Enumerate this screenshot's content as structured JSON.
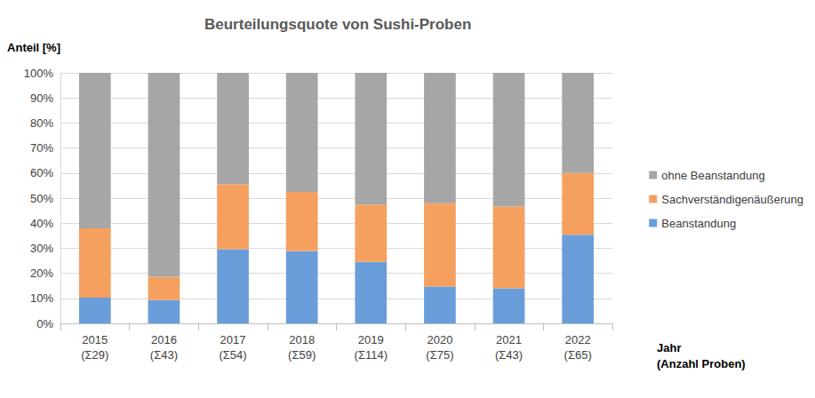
{
  "chart_data": {
    "type": "bar",
    "title": "Beurteilungsquote von Sushi-Proben",
    "y_label": "Anteil [%]",
    "x_label": "Jahr\n(Anzahl Proben)",
    "categories": [
      "2015\n(Σ29)",
      "2016\n(Σ43)",
      "2017\n(Σ54)",
      "2018\n(Σ59)",
      "2019\n(Σ114)",
      "2020\n(Σ75)",
      "2021\n(Σ43)",
      "2022\n(Σ65)"
    ],
    "series": [
      {
        "name": "Beanstandung",
        "color": "#6a9edb",
        "values": [
          10.3,
          9.3,
          29.6,
          28.8,
          24.6,
          14.7,
          14.0,
          35.4
        ]
      },
      {
        "name": "Sachverständigenäußerung",
        "color": "#f5a05e",
        "values": [
          27.6,
          9.3,
          25.9,
          23.7,
          22.8,
          33.3,
          32.6,
          24.6
        ]
      },
      {
        "name": "ohne Beanstandung",
        "color": "#a6a6a6",
        "values": [
          62.1,
          81.4,
          44.5,
          47.5,
          52.6,
          52.0,
          53.4,
          40.0
        ]
      }
    ],
    "stacked": true,
    "ylim": [
      0,
      100
    ],
    "yticks": [
      {
        "value": 0,
        "label": "0%"
      },
      {
        "value": 10,
        "label": "10%"
      },
      {
        "value": 20,
        "label": "20%"
      },
      {
        "value": 30,
        "label": "30%"
      },
      {
        "value": 40,
        "label": "40%"
      },
      {
        "value": 50,
        "label": "50%"
      },
      {
        "value": 60,
        "label": "60%"
      },
      {
        "value": 70,
        "label": "70%"
      },
      {
        "value": 80,
        "label": "80%"
      },
      {
        "value": 90,
        "label": "90%"
      },
      {
        "value": 100,
        "label": "100%"
      }
    ],
    "grid": true,
    "legend": "right"
  }
}
